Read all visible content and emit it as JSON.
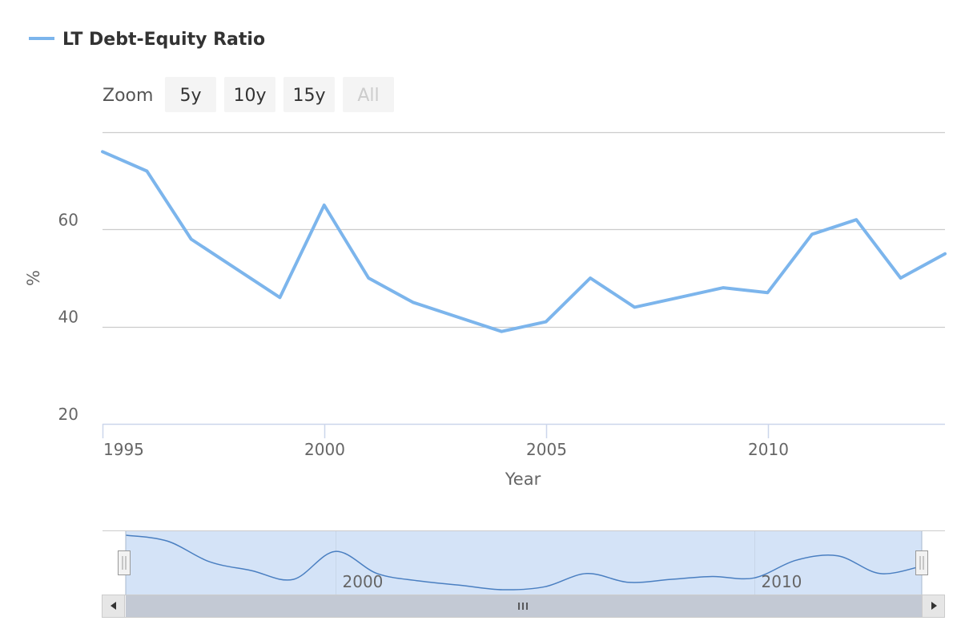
{
  "legend": {
    "label": "LT Debt-Equity Ratio"
  },
  "zoom": {
    "label": "Zoom",
    "buttons": [
      {
        "label": "5y",
        "disabled": false
      },
      {
        "label": "10y",
        "disabled": false
      },
      {
        "label": "15y",
        "disabled": false
      },
      {
        "label": "All",
        "disabled": true
      }
    ]
  },
  "colors": {
    "series": "#7cb5ec",
    "navigator_series": "#4a7fc1",
    "navigator_mask": "#d4e3f7"
  },
  "chart_data": {
    "type": "line",
    "title": "",
    "xlabel": "Year",
    "ylabel": "%",
    "xlim": [
      1995,
      2014
    ],
    "ylim": [
      20,
      80
    ],
    "x_ticks": [
      1995,
      2000,
      2005,
      2010
    ],
    "y_ticks": [
      20,
      40,
      60
    ],
    "grid": "horizontal",
    "legend_position": "top-left",
    "series": [
      {
        "name": "LT Debt-Equity Ratio",
        "x": [
          1995,
          1996,
          1997,
          1998,
          1999,
          2000,
          2001,
          2002,
          2003,
          2004,
          2005,
          2006,
          2007,
          2008,
          2009,
          2010,
          2011,
          2012,
          2013,
          2014
        ],
        "values": [
          76,
          72,
          58,
          52,
          46,
          65,
          50,
          45,
          42,
          39,
          41,
          50,
          44,
          46,
          48,
          47,
          59,
          62,
          50,
          55
        ]
      }
    ],
    "navigator": {
      "x_ticks": [
        2000,
        2010
      ]
    }
  }
}
